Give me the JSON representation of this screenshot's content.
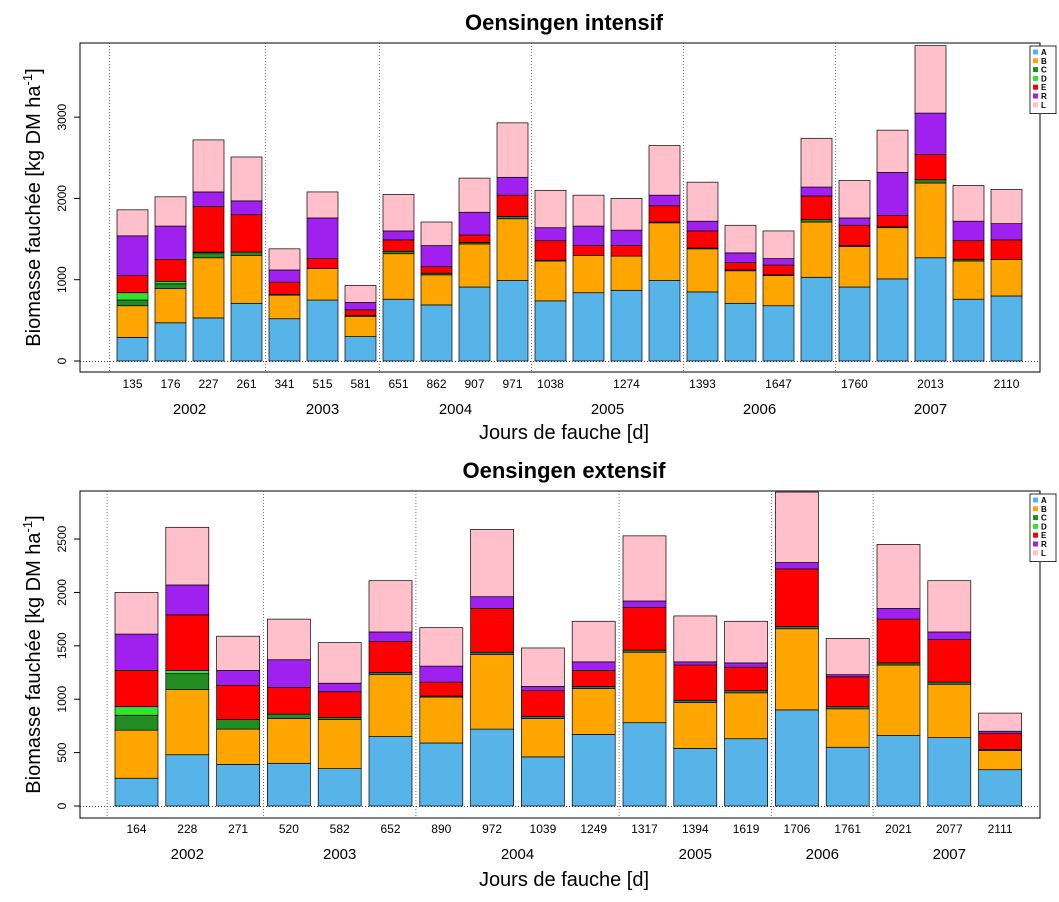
{
  "colors": {
    "A": "#56b4e9",
    "B": "#ffa500",
    "C": "#228b22",
    "D": "#2ee62e",
    "E": "#ff0000",
    "R": "#a020f0",
    "L": "#ffc0cb"
  },
  "chart_data": [
    {
      "type": "bar",
      "title": "Oensingen intensif",
      "xlabel": "Jours de fauche [d]",
      "ylabel": "Biomasse fauchée [kg DM ha",
      "ylabel_sup": "-1",
      "ylabel_end": "]",
      "ylim": [
        0,
        3900
      ],
      "yticks": [
        0,
        1000,
        2000,
        3000
      ],
      "categories": [
        "135",
        "176",
        "227",
        "261",
        "341",
        "515",
        "581",
        "651",
        "862",
        "907",
        "971",
        "1038",
        "",
        "1274",
        "",
        "1393",
        "",
        "1647",
        "",
        "1760",
        "",
        "2013",
        "",
        "2110"
      ],
      "years": [
        {
          "label": "2002",
          "after_bar": 4
        },
        {
          "label": "2003",
          "after_bar": 7
        },
        {
          "label": "2004",
          "after_bar": 11
        },
        {
          "label": "2005",
          "after_bar": 15
        },
        {
          "label": "2006",
          "after_bar": 19
        },
        {
          "label": "2007",
          "after_bar": 24
        }
      ],
      "legend": [
        "A",
        "B",
        "C",
        "D",
        "E",
        "R",
        "L"
      ],
      "legend_position": "top-right",
      "series": [
        {
          "name": "A",
          "values": [
            290,
            470,
            530,
            710,
            520,
            750,
            300,
            760,
            690,
            910,
            990,
            740,
            840,
            870,
            990,
            850,
            710,
            680,
            1030,
            910,
            1010,
            1270,
            760,
            800
          ]
        },
        {
          "name": "B",
          "values": [
            390,
            420,
            740,
            590,
            290,
            390,
            250,
            560,
            370,
            530,
            760,
            490,
            460,
            420,
            710,
            530,
            400,
            370,
            680,
            500,
            630,
            920,
            470,
            450
          ]
        },
        {
          "name": "C",
          "values": [
            70,
            60,
            60,
            40,
            10,
            0,
            10,
            30,
            20,
            20,
            30,
            10,
            0,
            0,
            10,
            10,
            10,
            10,
            30,
            10,
            10,
            40,
            20,
            0
          ]
        },
        {
          "name": "D",
          "values": [
            90,
            30,
            10,
            0,
            0,
            0,
            0,
            0,
            0,
            0,
            0,
            0,
            0,
            0,
            0,
            0,
            0,
            0,
            0,
            0,
            0,
            0,
            0,
            0
          ]
        },
        {
          "name": "E",
          "values": [
            210,
            270,
            560,
            460,
            150,
            120,
            70,
            140,
            80,
            90,
            260,
            240,
            120,
            130,
            200,
            210,
            90,
            120,
            290,
            250,
            140,
            310,
            230,
            240
          ]
        },
        {
          "name": "R",
          "values": [
            490,
            410,
            180,
            170,
            150,
            500,
            90,
            110,
            260,
            280,
            220,
            160,
            240,
            190,
            130,
            120,
            120,
            80,
            110,
            90,
            530,
            510,
            240,
            200
          ]
        },
        {
          "name": "L",
          "values": [
            320,
            360,
            640,
            540,
            260,
            320,
            210,
            450,
            290,
            420,
            670,
            460,
            380,
            390,
            610,
            480,
            340,
            340,
            600,
            460,
            520,
            830,
            440,
            420
          ]
        }
      ]
    },
    {
      "type": "bar",
      "title": "Oensingen extensif",
      "xlabel": "Jours de fauche [d]",
      "ylabel": "Biomasse fauchée [kg DM ha",
      "ylabel_sup": "-1",
      "ylabel_end": "]",
      "ylim": [
        0,
        2950
      ],
      "yticks": [
        0,
        500,
        1000,
        1500,
        2000,
        2500
      ],
      "categories": [
        "164",
        "228",
        "271",
        "520",
        "582",
        "652",
        "890",
        "972",
        "1039",
        "1249",
        "1317",
        "1394",
        "1619",
        "1706",
        "1761",
        "2021",
        "2077",
        "2111"
      ],
      "years": [
        {
          "label": "2002",
          "after_bar": 3
        },
        {
          "label": "2003",
          "after_bar": 6
        },
        {
          "label": "2004",
          "after_bar": 10
        },
        {
          "label": "2005",
          "after_bar": 13
        },
        {
          "label": "2006",
          "after_bar": 15
        },
        {
          "label": "2007",
          "after_bar": 18
        }
      ],
      "legend": [
        "A",
        "B",
        "C",
        "D",
        "E",
        "R",
        "L"
      ],
      "legend_position": "top-right",
      "series": [
        {
          "name": "A",
          "values": [
            260,
            480,
            390,
            400,
            350,
            650,
            590,
            720,
            460,
            670,
            780,
            540,
            630,
            900,
            550,
            660,
            640,
            340
          ]
        },
        {
          "name": "B",
          "values": [
            450,
            610,
            330,
            420,
            460,
            580,
            430,
            700,
            360,
            430,
            660,
            430,
            430,
            760,
            360,
            660,
            500,
            180
          ]
        },
        {
          "name": "C",
          "values": [
            140,
            150,
            90,
            40,
            20,
            20,
            10,
            20,
            20,
            20,
            20,
            20,
            20,
            20,
            20,
            20,
            20,
            10
          ]
        },
        {
          "name": "D",
          "values": [
            80,
            30,
            0,
            0,
            0,
            0,
            0,
            0,
            0,
            0,
            0,
            0,
            0,
            0,
            0,
            0,
            0,
            0
          ]
        },
        {
          "name": "E",
          "values": [
            340,
            520,
            320,
            250,
            240,
            290,
            130,
            410,
            240,
            150,
            400,
            330,
            220,
            540,
            280,
            410,
            400,
            150
          ]
        },
        {
          "name": "R",
          "values": [
            340,
            280,
            140,
            260,
            80,
            90,
            150,
            110,
            40,
            80,
            60,
            30,
            40,
            60,
            20,
            100,
            70,
            20
          ]
        },
        {
          "name": "L",
          "values": [
            390,
            540,
            320,
            380,
            380,
            480,
            360,
            630,
            360,
            380,
            610,
            430,
            390,
            660,
            340,
            600,
            480,
            170
          ]
        }
      ]
    }
  ]
}
